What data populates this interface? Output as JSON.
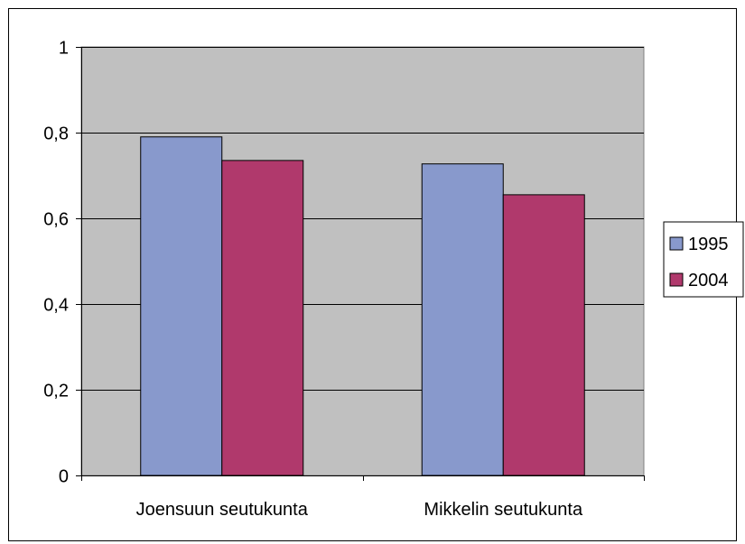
{
  "chart_data": {
    "type": "bar",
    "categories": [
      "Joensuun seutukunta",
      "Mikkelin seutukunta"
    ],
    "series": [
      {
        "name": "1995",
        "values": [
          0.79,
          0.727
        ],
        "color": "#8899cc"
      },
      {
        "name": "2004",
        "values": [
          0.735,
          0.655
        ],
        "color": "#b0396c"
      }
    ],
    "ylim": [
      0,
      1
    ],
    "yticks": [
      0,
      0.2,
      0.4,
      0.6,
      0.8,
      1
    ],
    "ytick_labels": [
      "0",
      "0,2",
      "0,4",
      "0,6",
      "0,8",
      "1"
    ],
    "xlabel": "",
    "ylabel": "",
    "title": "",
    "grid": true,
    "legend_position": "right",
    "plot_background": "#c0c0c0"
  }
}
